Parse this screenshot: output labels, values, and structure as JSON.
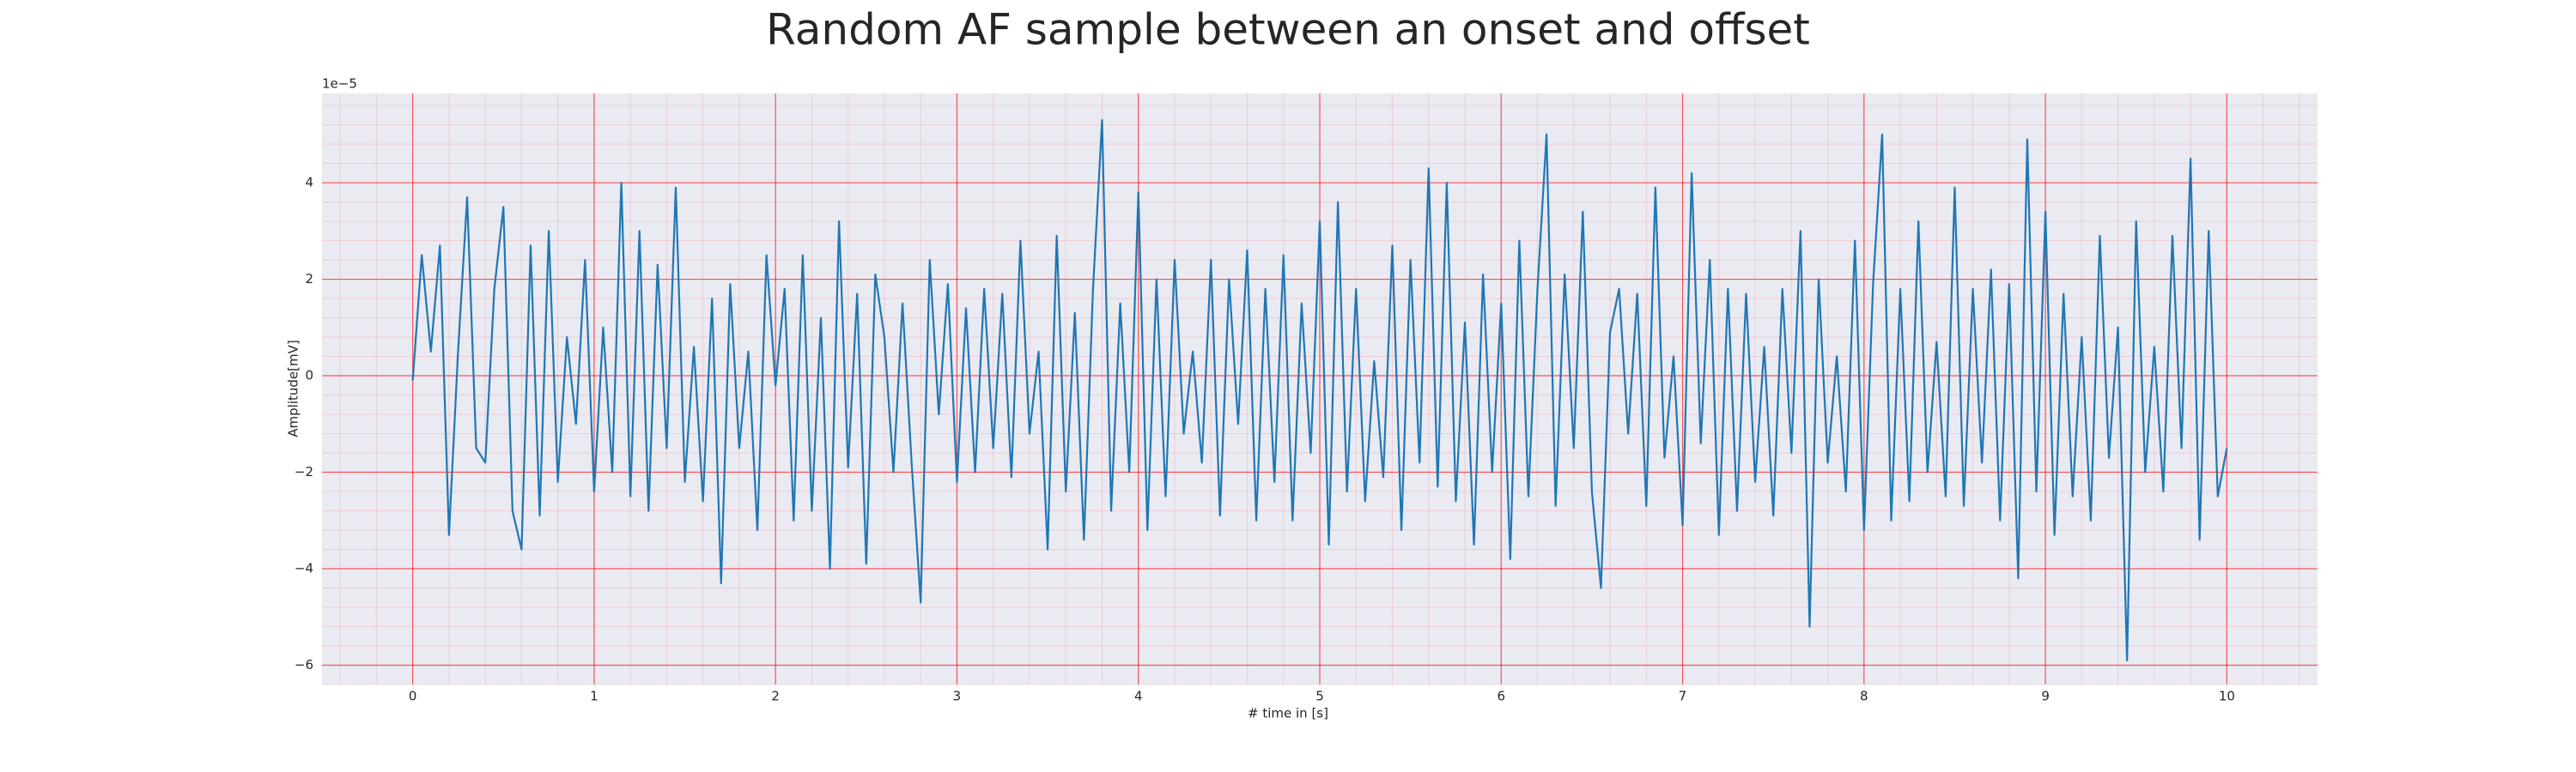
{
  "chart_data": {
    "type": "line",
    "title": "Random AF sample between an onset and offset",
    "xlabel": "# time in [s]",
    "ylabel": "Amplitude[mV]",
    "y_offset_text": "1e−5",
    "color": "#1f77b4",
    "grid": true,
    "minor_grid": true,
    "grid_color": "#ff0000",
    "background": "#eaeaf2",
    "xlim": [
      -0.5,
      10.5
    ],
    "ylim": [
      -6.4,
      5.85
    ],
    "xticks": [
      0,
      1,
      2,
      3,
      4,
      5,
      6,
      7,
      8,
      9,
      10
    ],
    "yticks": [
      {
        "value": -6,
        "label": "−6"
      },
      {
        "value": -4,
        "label": "−4"
      },
      {
        "value": -2,
        "label": "−2"
      },
      0,
      2,
      4
    ],
    "x": [
      0,
      0.05,
      0.1,
      0.15,
      0.2,
      0.25,
      0.3,
      0.35,
      0.4,
      0.45,
      0.5,
      0.55,
      0.6,
      0.65,
      0.7,
      0.75,
      0.8,
      0.85,
      0.9,
      0.95,
      1,
      1.05,
      1.1,
      1.15,
      1.2,
      1.25,
      1.3,
      1.35,
      1.4,
      1.45,
      1.5,
      1.55,
      1.6,
      1.65,
      1.7,
      1.75,
      1.8,
      1.85,
      1.9,
      1.95,
      2,
      2.05,
      2.1,
      2.15,
      2.2,
      2.25,
      2.3,
      2.35,
      2.4,
      2.45,
      2.5,
      2.55,
      2.6,
      2.65,
      2.7,
      2.75,
      2.8,
      2.85,
      2.9,
      2.95,
      3,
      3.05,
      3.1,
      3.15,
      3.2,
      3.25,
      3.3,
      3.35,
      3.4,
      3.45,
      3.5,
      3.55,
      3.6,
      3.65,
      3.7,
      3.75,
      3.8,
      3.85,
      3.9,
      3.95,
      4,
      4.05,
      4.1,
      4.15,
      4.2,
      4.25,
      4.3,
      4.35,
      4.4,
      4.45,
      4.5,
      4.55,
      4.6,
      4.65,
      4.7,
      4.75,
      4.8,
      4.85,
      4.9,
      4.95,
      5,
      5.05,
      5.1,
      5.15,
      5.2,
      5.25,
      5.3,
      5.35,
      5.4,
      5.45,
      5.5,
      5.55,
      5.6,
      5.65,
      5.7,
      5.75,
      5.8,
      5.85,
      5.9,
      5.95,
      6,
      6.05,
      6.1,
      6.15,
      6.2,
      6.25,
      6.3,
      6.35,
      6.4,
      6.45,
      6.5,
      6.55,
      6.6,
      6.65,
      6.7,
      6.75,
      6.8,
      6.85,
      6.9,
      6.95,
      7,
      7.05,
      7.1,
      7.15,
      7.2,
      7.25,
      7.3,
      7.35,
      7.4,
      7.45,
      7.5,
      7.55,
      7.6,
      7.65,
      7.7,
      7.75,
      7.8,
      7.85,
      7.9,
      7.95,
      8,
      8.05,
      8.1,
      8.15,
      8.2,
      8.25,
      8.3,
      8.35,
      8.4,
      8.45,
      8.5,
      8.55,
      8.6,
      8.65,
      8.7,
      8.75,
      8.8,
      8.85,
      8.9,
      8.95,
      9,
      9.05,
      9.1,
      9.15,
      9.2,
      9.25,
      9.3,
      9.35,
      9.4,
      9.45,
      9.5,
      9.55,
      9.6,
      9.65,
      9.7,
      9.75,
      9.8,
      9.85,
      9.9,
      9.95,
      10
    ],
    "values": [
      -0.1,
      2.5,
      0.5,
      2.7,
      -3.3,
      0.5,
      3.7,
      -1.5,
      -1.8,
      1.8,
      3.5,
      -2.8,
      -3.6,
      2.7,
      -2.9,
      3.0,
      -2.2,
      0.8,
      -1.0,
      2.4,
      -2.4,
      1.0,
      -2.0,
      4.0,
      -2.5,
      3.0,
      -2.8,
      2.3,
      -1.5,
      3.9,
      -2.2,
      0.6,
      -2.6,
      1.6,
      -4.3,
      1.9,
      -1.5,
      0.5,
      -3.2,
      2.5,
      -0.2,
      1.8,
      -3.0,
      2.5,
      -2.8,
      1.2,
      -4.0,
      3.2,
      -1.9,
      1.7,
      -3.9,
      2.1,
      0.8,
      -2.0,
      1.5,
      -1.8,
      -4.7,
      2.4,
      -0.8,
      1.9,
      -2.2,
      1.4,
      -2.0,
      1.8,
      -1.5,
      1.7,
      -2.1,
      2.8,
      -1.2,
      0.5,
      -3.6,
      2.9,
      -2.4,
      1.3,
      -3.4,
      1.8,
      5.3,
      -2.8,
      1.5,
      -2.0,
      3.8,
      -3.2,
      2.0,
      -2.5,
      2.4,
      -1.2,
      0.5,
      -1.8,
      2.4,
      -2.9,
      2.0,
      -1.0,
      2.6,
      -3.0,
      1.8,
      -2.2,
      2.5,
      -3.0,
      1.5,
      -1.6,
      3.2,
      -3.5,
      3.6,
      -2.4,
      1.8,
      -2.6,
      0.3,
      -2.1,
      2.7,
      -3.2,
      2.4,
      -1.8,
      4.3,
      -2.3,
      4.0,
      -2.6,
      1.1,
      -3.5,
      2.1,
      -2.0,
      1.5,
      -3.8,
      2.8,
      -2.5,
      1.8,
      5.0,
      -2.7,
      2.1,
      -1.5,
      3.4,
      -2.4,
      -4.4,
      0.9,
      1.8,
      -1.2,
      1.7,
      -2.7,
      3.9,
      -1.7,
      0.4,
      -3.1,
      4.2,
      -1.4,
      2.4,
      -3.3,
      1.8,
      -2.8,
      1.7,
      -2.2,
      0.6,
      -2.9,
      1.8,
      -1.6,
      3.0,
      -5.2,
      2.0,
      -1.8,
      0.4,
      -2.4,
      2.8,
      -3.2,
      1.9,
      5.0,
      -3.0,
      1.8,
      -2.6,
      3.2,
      -2.0,
      0.7,
      -2.5,
      3.9,
      -2.7,
      1.8,
      -1.8,
      2.2,
      -3.0,
      1.9,
      -4.2,
      4.9,
      -2.4,
      3.4,
      -3.3,
      1.7,
      -2.5,
      0.8,
      -3.0,
      2.9,
      -1.7,
      1.0,
      -5.9,
      3.2,
      -2.0,
      0.6,
      -2.4,
      2.9,
      -1.5,
      4.5,
      -3.4,
      3.0,
      -2.5,
      -1.5
    ]
  }
}
